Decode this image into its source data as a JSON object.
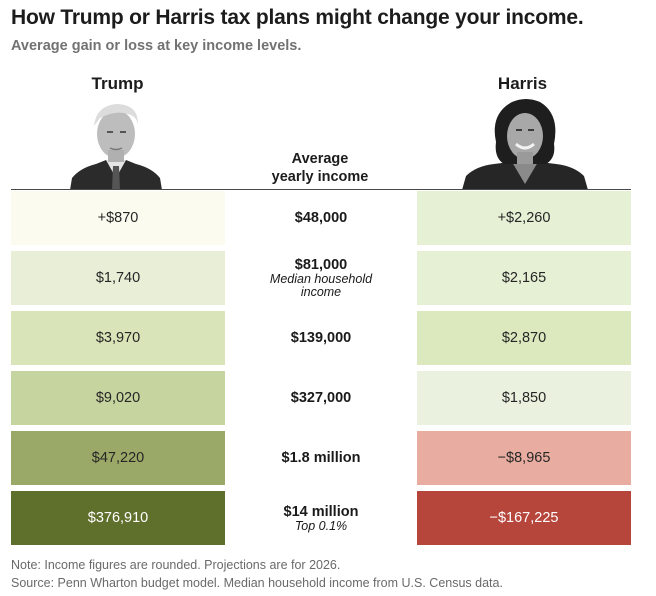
{
  "header": {
    "title": "How Trump or Harris tax plans might change your income.",
    "subtitle": "Average gain or loss at key income levels."
  },
  "candidates": {
    "left": {
      "name": "Trump",
      "portrait_icon": "trump-portrait-icon"
    },
    "right": {
      "name": "Harris",
      "portrait_icon": "harris-portrait-icon"
    }
  },
  "column_header": {
    "line1": "Average",
    "line2": "yearly income"
  },
  "colors": {
    "trump_rows": [
      "#fbfcef",
      "#e8efd6",
      "#d9e5b8",
      "#c6d59f",
      "#9aa968",
      "#5f6f2c"
    ],
    "harris_rows": [
      "#e5f0d5",
      "#e5f0d5",
      "#dce9bf",
      "#eaf2df",
      "#e8ada0",
      "#b6453c"
    ]
  },
  "chart_data": {
    "type": "table",
    "title": "How Trump or Harris tax plans might change your income.",
    "subtitle": "Average gain or loss at key income levels.",
    "columns": [
      "Trump",
      "Average yearly income",
      "Harris"
    ],
    "rows": [
      {
        "income": "$48,000",
        "income_note": "",
        "trump": "+$870",
        "harris": "+$2,260",
        "trump_value": 870,
        "harris_value": 2260
      },
      {
        "income": "$81,000",
        "income_note": "Median household income",
        "trump": "$1,740",
        "harris": "$2,165",
        "trump_value": 1740,
        "harris_value": 2165
      },
      {
        "income": "$139,000",
        "income_note": "",
        "trump": "$3,970",
        "harris": "$2,870",
        "trump_value": 3970,
        "harris_value": 2870
      },
      {
        "income": "$327,000",
        "income_note": "",
        "trump": "$9,020",
        "harris": "$1,850",
        "trump_value": 9020,
        "harris_value": 1850
      },
      {
        "income": "$1.8 million",
        "income_note": "",
        "trump": "$47,220",
        "harris": "−$8,965",
        "trump_value": 47220,
        "harris_value": -8965
      },
      {
        "income": "$14 million",
        "income_note": "Top 0.1%",
        "trump": "$376,910",
        "harris": "−$167,225",
        "trump_value": 376910,
        "harris_value": -167225
      }
    ]
  },
  "footer": {
    "note": "Note: Income figures are rounded. Projections are for 2026.",
    "source": "Source: Penn Wharton budget model. Median household income from U.S. Census data."
  }
}
